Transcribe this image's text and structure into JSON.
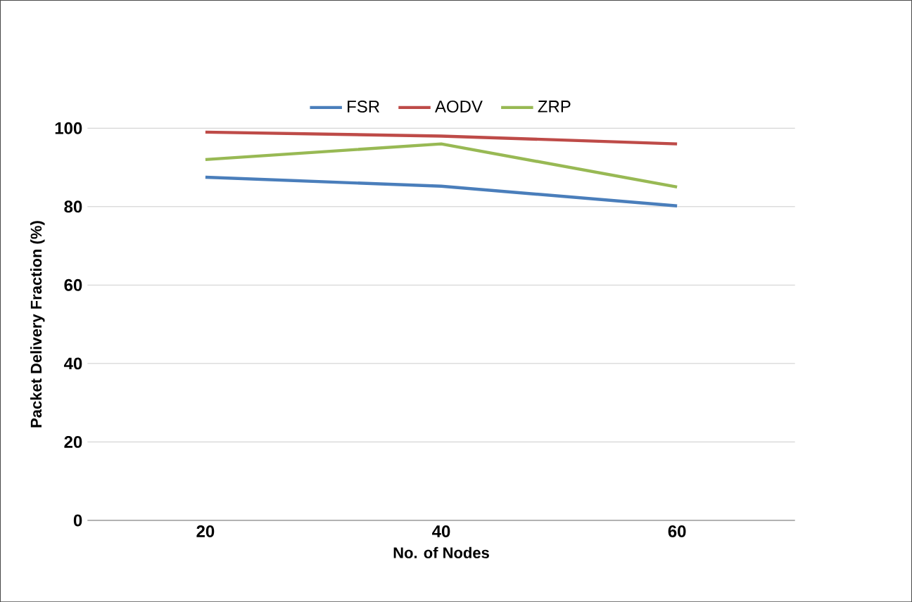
{
  "chart_data": {
    "type": "line",
    "xlabel": "No. of Nodes",
    "ylabel": "Packet Delivery Fraction (%)",
    "categories": [
      "20",
      "40",
      "60"
    ],
    "series": [
      {
        "name": "FSR",
        "color": "#4a7ebb",
        "values": [
          87.5,
          85.2,
          80.2
        ]
      },
      {
        "name": "AODV",
        "color": "#be4b48",
        "values": [
          99,
          98,
          96
        ]
      },
      {
        "name": "ZRP",
        "color": "#98b954",
        "values": [
          92,
          96,
          85
        ]
      }
    ],
    "ylim": [
      0,
      100
    ],
    "yticks": [
      0,
      20,
      40,
      60,
      80,
      100
    ],
    "grid": "y",
    "legend": "top",
    "marker": "none",
    "line_style": "solid"
  }
}
